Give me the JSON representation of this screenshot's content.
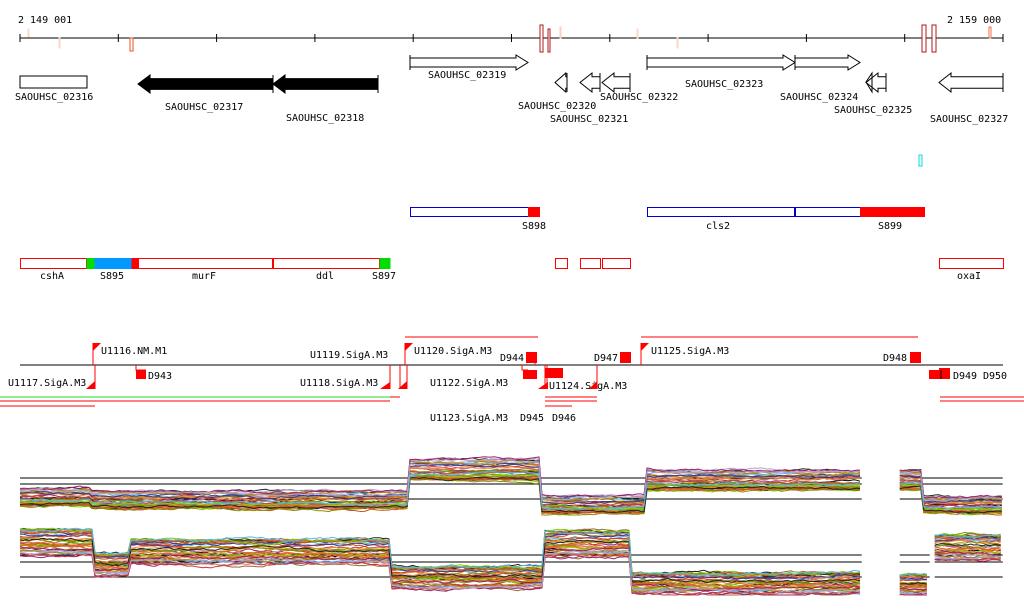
{
  "ruler": {
    "start_label": "2 149 001",
    "end_label": "2 159 000"
  },
  "genes": [
    {
      "label": "SAOUHSC_02316"
    },
    {
      "label": "SAOUHSC_02317"
    },
    {
      "label": "SAOUHSC_02318"
    },
    {
      "label": "SAOUHSC_02319"
    },
    {
      "label": "SAOUHSC_02320"
    },
    {
      "label": "SAOUHSC_02321"
    },
    {
      "label": "SAOUHSC_02322"
    },
    {
      "label": "SAOUHSC_02323"
    },
    {
      "label": "SAOUHSC_02324"
    },
    {
      "label": "SAOUHSC_02325"
    },
    {
      "label": "SAOUHSC_02327"
    }
  ],
  "annotations_minus": [
    {
      "label": "S898"
    },
    {
      "label": "cls2"
    },
    {
      "label": "S899"
    }
  ],
  "annotations_plus": [
    {
      "label": "cshA"
    },
    {
      "label": "S895"
    },
    {
      "label": "murF"
    },
    {
      "label": "ddl"
    },
    {
      "label": "S897"
    },
    {
      "label": "oxaI"
    }
  ],
  "promoters": {
    "u1116": "U1116.NM.M1",
    "u1117": "U1117.SigA.M3",
    "u1118": "U1118.SigA.M3",
    "u1119": "U1119.SigA.M3",
    "u1120": "U1120.SigA.M3",
    "u1122": "U1122.SigA.M3",
    "u1123": "U1123.SigA.M3",
    "u1124": "U1124.SigA.M3",
    "u1125": "U1125.SigA.M3",
    "d943": "D943",
    "d944": "D944",
    "d945": "D945",
    "d946": "D946",
    "d947": "D947",
    "d948": "D948",
    "d949": "D949",
    "d950": "D950"
  },
  "colors": {
    "accent_red": "#ff0000",
    "strand_minus_outline": "#0000cc",
    "green": "#00dd00",
    "blue_fill": "#0099ff",
    "cyan": "#00dddd",
    "series": [
      "#e8542a",
      "#c0561e",
      "#8a8a00",
      "#7fd000",
      "#a01f6a",
      "#222222",
      "#59b4f2",
      "#b5a0c8",
      "#d47a2a",
      "#c43a3a",
      "#9a6b3a",
      "#e07b7b",
      "#6a9a00",
      "#3b3b8a",
      "#f08c3c",
      "#b8860b"
    ]
  },
  "expression_panels": [
    {
      "segments": [
        [
          0,
          732,
          0.3
        ],
        [
          732,
          3966,
          0.25
        ],
        [
          3966,
          5288,
          0.75
        ],
        [
          5288,
          6356,
          0.17
        ],
        [
          6356,
          8563,
          0.58
        ],
        [
          8950,
          9173,
          0.58
        ],
        [
          9173,
          9997,
          0.17
        ]
      ]
    },
    {
      "segments": [
        [
          0,
          742,
          0.7
        ],
        [
          742,
          1119,
          0.4
        ],
        [
          1119,
          3763,
          0.57
        ],
        [
          3763,
          5339,
          0.23
        ],
        [
          5339,
          6224,
          0.67
        ],
        [
          6224,
          8563,
          0.15
        ],
        [
          8950,
          9254,
          0.13
        ],
        [
          9305,
          9997,
          0.63
        ]
      ]
    }
  ]
}
